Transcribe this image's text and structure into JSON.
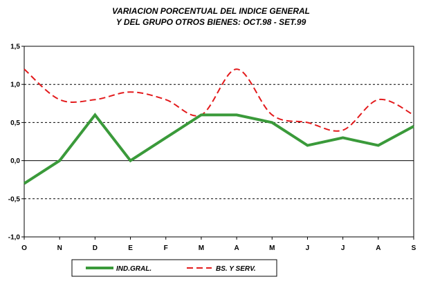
{
  "chart_data": {
    "type": "line",
    "title": "VARIACION PORCENTUAL DEL INDICE GENERAL",
    "subtitle": "Y DEL GRUPO OTROS BIENES: OCT.98 - SET.99",
    "categories": [
      "O",
      "N",
      "D",
      "E",
      "F",
      "M",
      "A",
      "M",
      "J",
      "J",
      "A",
      "S"
    ],
    "ylim": [
      -1.0,
      1.5
    ],
    "yticks": [
      "1,5",
      "1,0",
      "0,5",
      "0,0",
      "-0,5",
      "-1,0"
    ],
    "ytick_values": [
      1.5,
      1.0,
      0.5,
      0.0,
      -0.5,
      -1.0
    ],
    "grid": "horizontal dashed at 0.5 intervals",
    "legend_position": "bottom",
    "series": [
      {
        "name": "IND.GRAL.",
        "color": "#3a9a3a",
        "style": "solid",
        "values": [
          -0.3,
          0.0,
          0.6,
          0.0,
          0.3,
          0.6,
          0.6,
          0.5,
          0.2,
          0.3,
          0.2,
          0.45
        ]
      },
      {
        "name": "BS. Y SERV.",
        "color": "#e31a1c",
        "style": "dashed-smooth",
        "values": [
          1.2,
          0.8,
          0.8,
          0.9,
          0.8,
          0.6,
          1.2,
          0.6,
          0.5,
          0.4,
          0.8,
          0.6
        ]
      }
    ]
  }
}
